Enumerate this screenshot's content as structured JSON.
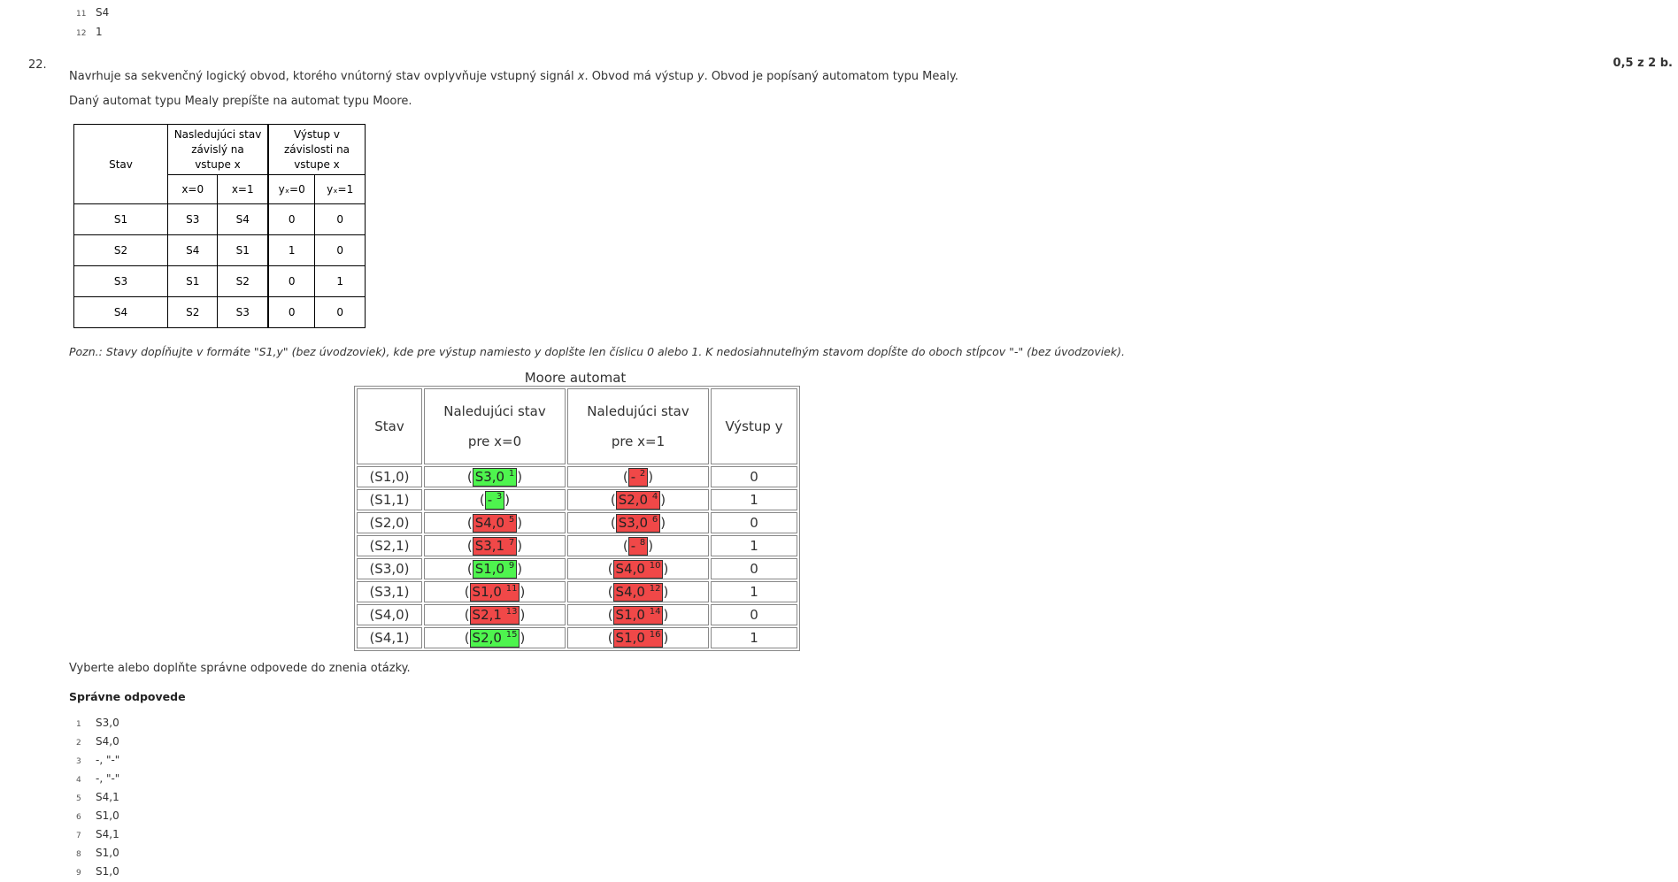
{
  "previous_answers": [
    {
      "num": "11",
      "value": "S4"
    },
    {
      "num": "12",
      "value": "1"
    }
  ],
  "question": {
    "number": "22.",
    "score": "0,5 z 2 b.",
    "text1_pre": "Navrhuje sa sekvenčný logický obvod, ktorého vnútorný stav ovplyvňuje vstupný signál ",
    "text1_var_x": "x",
    "text1_mid": ". Obvod má výstup ",
    "text1_var_y": "y",
    "text1_post": ". Obvod je popísaný automatom typu Mealy.",
    "text2": "Daný automat typu Mealy prepíšte na automat typu Moore.",
    "note": "Pozn.: Stavy dopĺňujte v formáte \"S1,y\" (bez úvodzoviek), kde pre výstup namiesto y doplšte len číslicu 0 alebo 1. K nedosiahnuteľným stavom dopĺšte do oboch stĺpcov \"-\" (bez úvodzoviek)."
  },
  "mealy_table": {
    "col_stav": "Stav",
    "col_next": "Nasledujúci stav závislý na vstupe x",
    "col_out": "Výstup v závislosti na vstupe x",
    "sub_x0": "x=0",
    "sub_x1": "x=1",
    "sub_y0": "yₓ=0",
    "sub_y1": "yₓ=1",
    "rows": [
      [
        "S1",
        "S3",
        "S4",
        "0",
        "0"
      ],
      [
        "S2",
        "S4",
        "S1",
        "1",
        "0"
      ],
      [
        "S3",
        "S1",
        "S2",
        "0",
        "1"
      ],
      [
        "S4",
        "S2",
        "S3",
        "0",
        "0"
      ]
    ]
  },
  "moore_table": {
    "caption": "Moore automat",
    "col_stav": "Stav",
    "col_x0_line1": "Naledujúci stav",
    "col_x0_line2": "pre x=0",
    "col_x1_line1": "Naledujúci stav",
    "col_x1_line2": "pre x=1",
    "col_out": "Výstup y",
    "rows": [
      {
        "stav": "(S1,0)",
        "x0": "S3,0",
        "x0_n": "1",
        "x0_ok": true,
        "x1": "-",
        "x1_n": "2",
        "x1_ok": false,
        "out": "0"
      },
      {
        "stav": "(S1,1)",
        "x0": "-",
        "x0_n": "3",
        "x0_ok": true,
        "x1": "S2,0",
        "x1_n": "4",
        "x1_ok": false,
        "out": "1"
      },
      {
        "stav": "(S2,0)",
        "x0": "S4,0",
        "x0_n": "5",
        "x0_ok": false,
        "x1": "S3,0",
        "x1_n": "6",
        "x1_ok": false,
        "out": "0"
      },
      {
        "stav": "(S2,1)",
        "x0": "S3,1",
        "x0_n": "7",
        "x0_ok": false,
        "x1": "-",
        "x1_n": "8",
        "x1_ok": false,
        "out": "1"
      },
      {
        "stav": "(S3,0)",
        "x0": "S1,0",
        "x0_n": "9",
        "x0_ok": true,
        "x1": "S4,0",
        "x1_n": "10",
        "x1_ok": false,
        "out": "0"
      },
      {
        "stav": "(S3,1)",
        "x0": "S1,0",
        "x0_n": "11",
        "x0_ok": false,
        "x1": "S4,0",
        "x1_n": "12",
        "x1_ok": false,
        "out": "1"
      },
      {
        "stav": "(S4,0)",
        "x0": "S2,1",
        "x0_n": "13",
        "x0_ok": false,
        "x1": "S1,0",
        "x1_n": "14",
        "x1_ok": false,
        "out": "0"
      },
      {
        "stav": "(S4,1)",
        "x0": "S2,0",
        "x0_n": "15",
        "x0_ok": true,
        "x1": "S1,0",
        "x1_n": "16",
        "x1_ok": false,
        "out": "1"
      }
    ],
    "colors": {
      "correct": "#4ef44e",
      "wrong": "#f04848"
    }
  },
  "instruction": "Vyberte alebo doplňte správne odpovede do znenia otázky.",
  "correct_title": "Správne odpovede",
  "correct_answers": [
    {
      "num": "1",
      "value": "S3,0"
    },
    {
      "num": "2",
      "value": "S4,0"
    },
    {
      "num": "3",
      "value": "-, \"-\""
    },
    {
      "num": "4",
      "value": "-, \"-\""
    },
    {
      "num": "5",
      "value": "S4,1"
    },
    {
      "num": "6",
      "value": "S1,0"
    },
    {
      "num": "7",
      "value": "S4,1"
    },
    {
      "num": "8",
      "value": "S1,0"
    },
    {
      "num": "9",
      "value": "S1,0"
    }
  ]
}
